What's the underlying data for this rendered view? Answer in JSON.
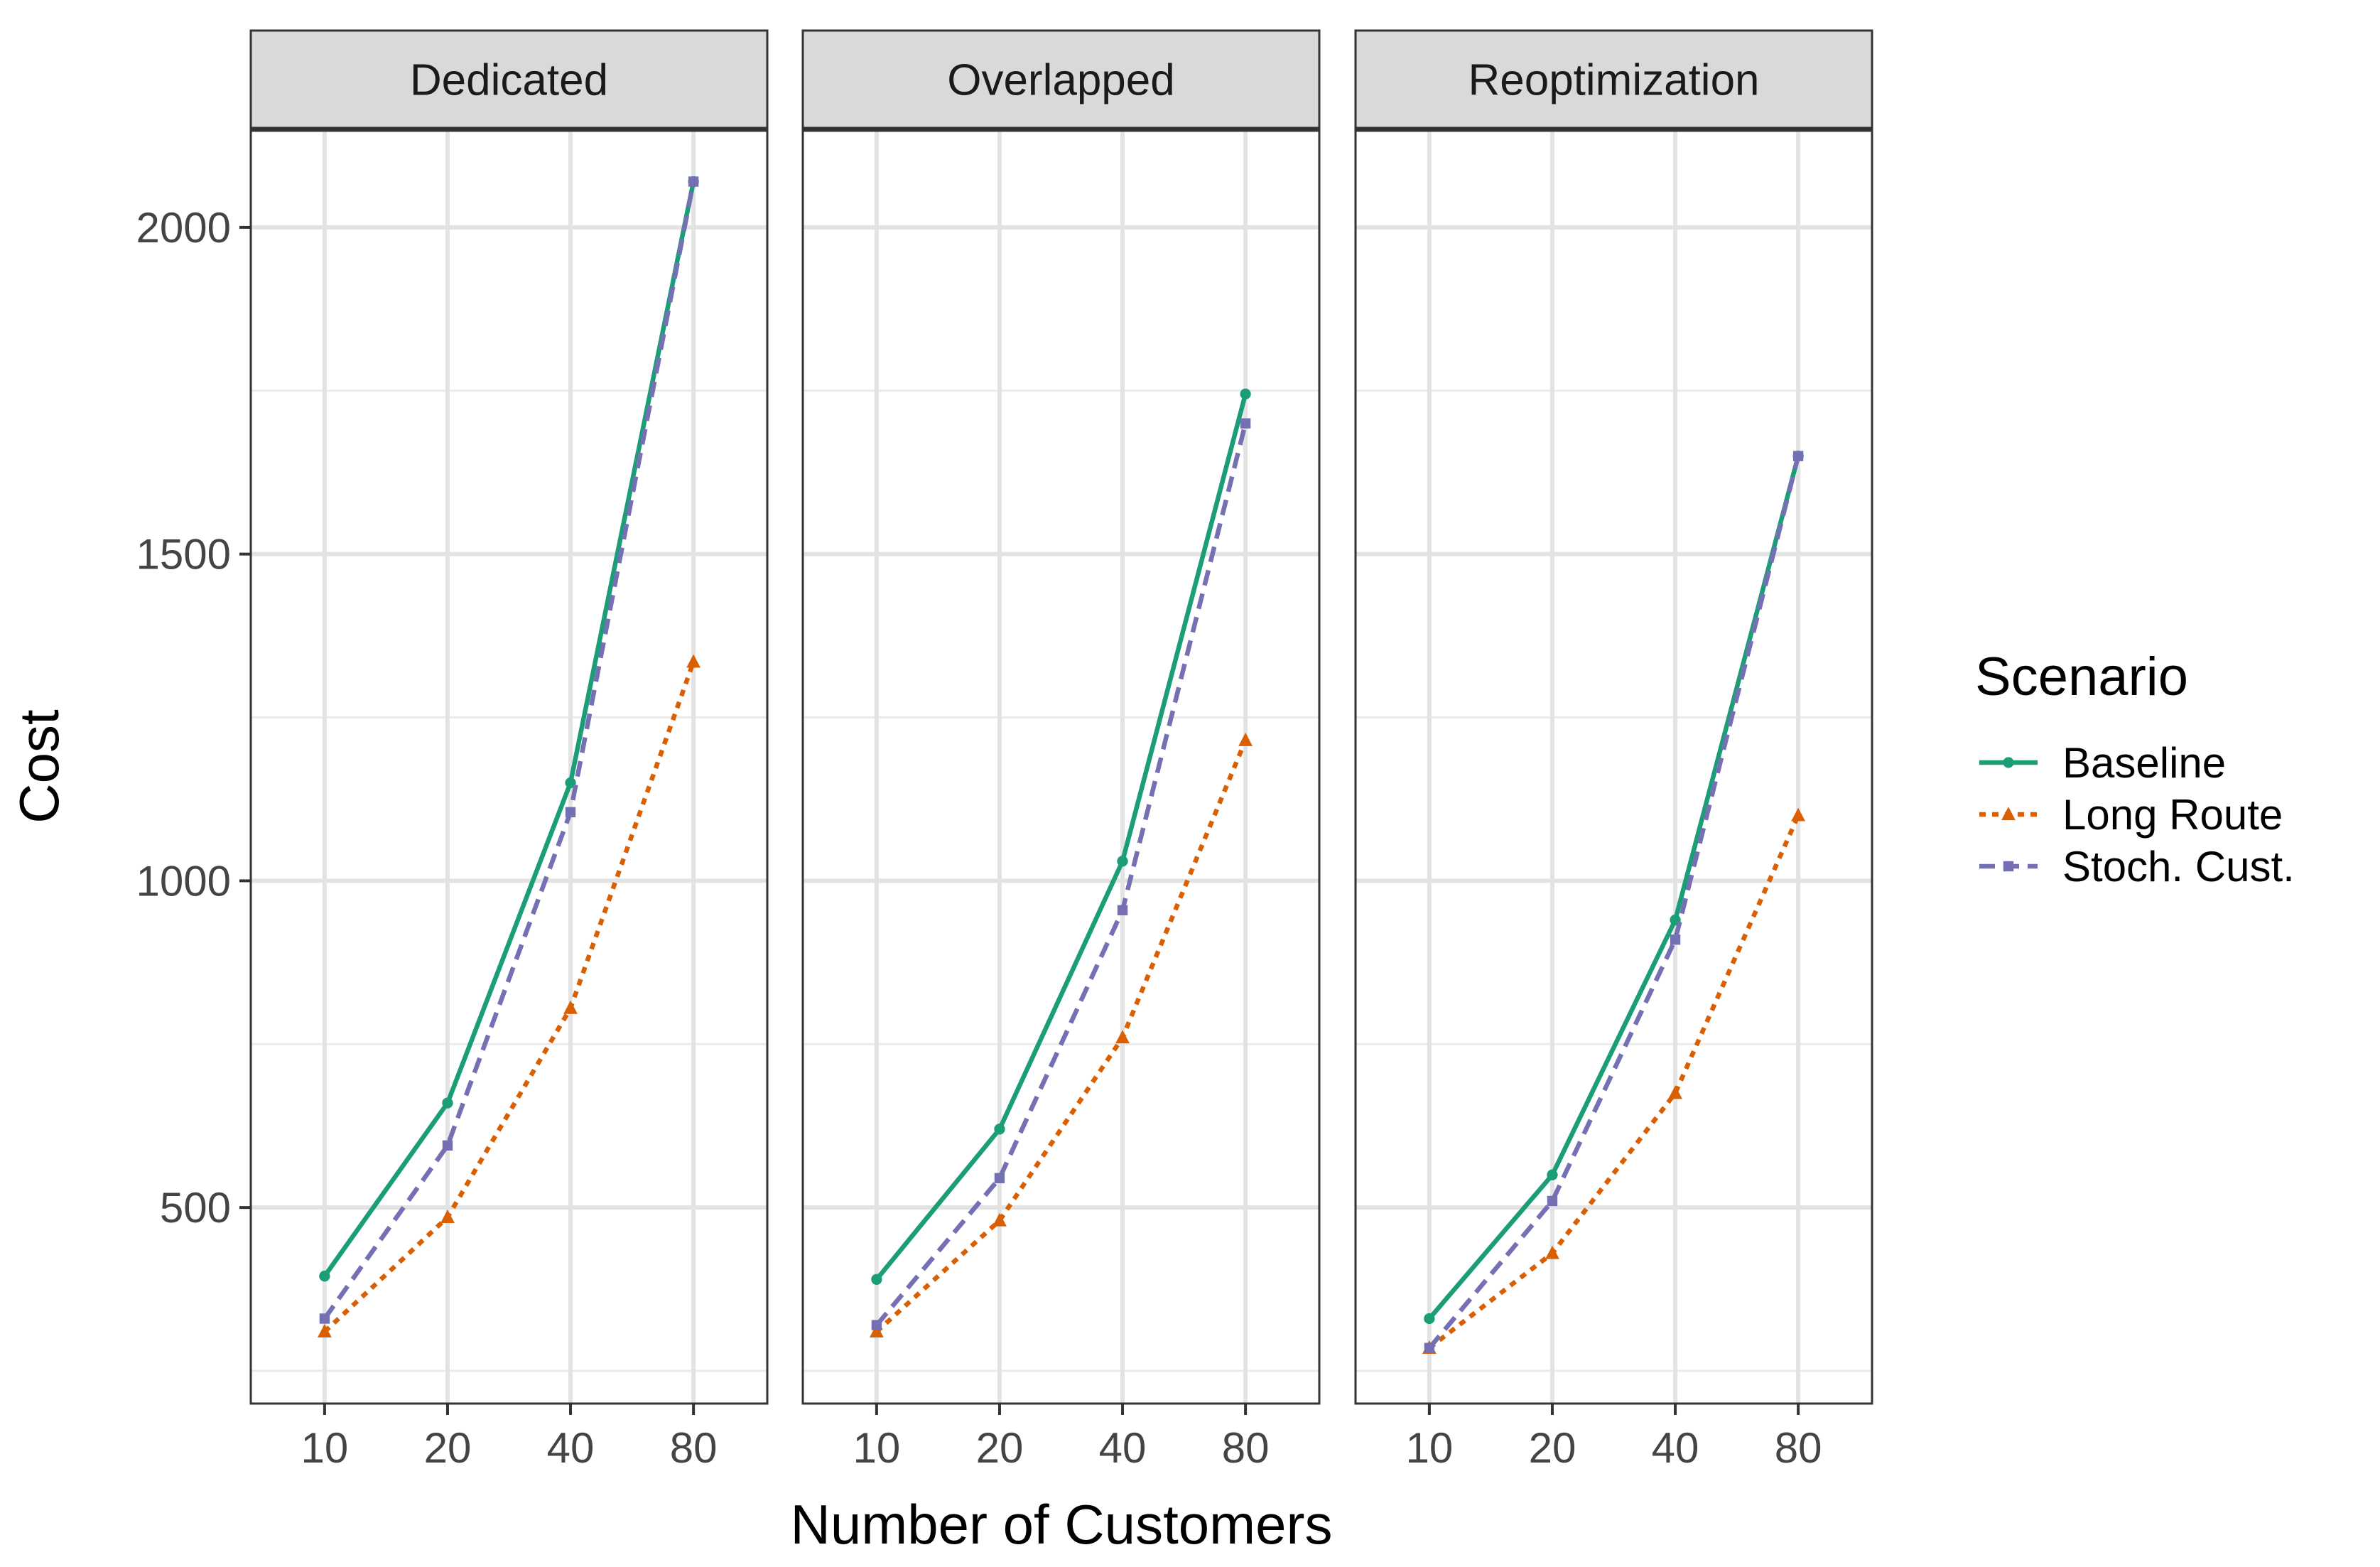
{
  "chart_data": {
    "type": "line",
    "xlabel": "Number of Customers",
    "ylabel": "Cost",
    "x_categories": [
      "10",
      "20",
      "40",
      "80"
    ],
    "y_ticks": [
      500,
      1000,
      1500,
      2000
    ],
    "ylim": [
      200,
      2150
    ],
    "grid": true,
    "legend": {
      "title": "Scenario",
      "placement": "right",
      "entries": [
        "Baseline",
        "Long Route",
        "Stoch. Cust."
      ]
    },
    "series_styles": [
      {
        "name": "Baseline",
        "color": "#1b9e77",
        "dash": "solid",
        "marker": "circle"
      },
      {
        "name": "Long Route",
        "color": "#d95f02",
        "dash": "dotted",
        "marker": "triangle"
      },
      {
        "name": "Stoch. Cust.",
        "color": "#7570b3",
        "dash": "dashed",
        "marker": "square"
      }
    ],
    "facets": [
      {
        "label": "Dedicated",
        "series": [
          {
            "name": "Baseline",
            "values": [
              395,
              660,
              1150,
              2070
            ]
          },
          {
            "name": "Long Route",
            "values": [
              310,
              485,
              805,
              1335
            ]
          },
          {
            "name": "Stoch. Cust.",
            "values": [
              330,
              595,
              1105,
              2070
            ]
          }
        ]
      },
      {
        "label": "Overlapped",
        "series": [
          {
            "name": "Baseline",
            "values": [
              390,
              620,
              1030,
              1745
            ]
          },
          {
            "name": "Long Route",
            "values": [
              310,
              480,
              760,
              1215
            ]
          },
          {
            "name": "Stoch. Cust.",
            "values": [
              320,
              545,
              955,
              1700
            ]
          }
        ]
      },
      {
        "label": "Reoptimization",
        "series": [
          {
            "name": "Baseline",
            "values": [
              330,
              550,
              940,
              1650
            ]
          },
          {
            "name": "Long Route",
            "values": [
              285,
              430,
              675,
              1100
            ]
          },
          {
            "name": "Stoch. Cust.",
            "values": [
              285,
              510,
              910,
              1650
            ]
          }
        ]
      }
    ]
  }
}
